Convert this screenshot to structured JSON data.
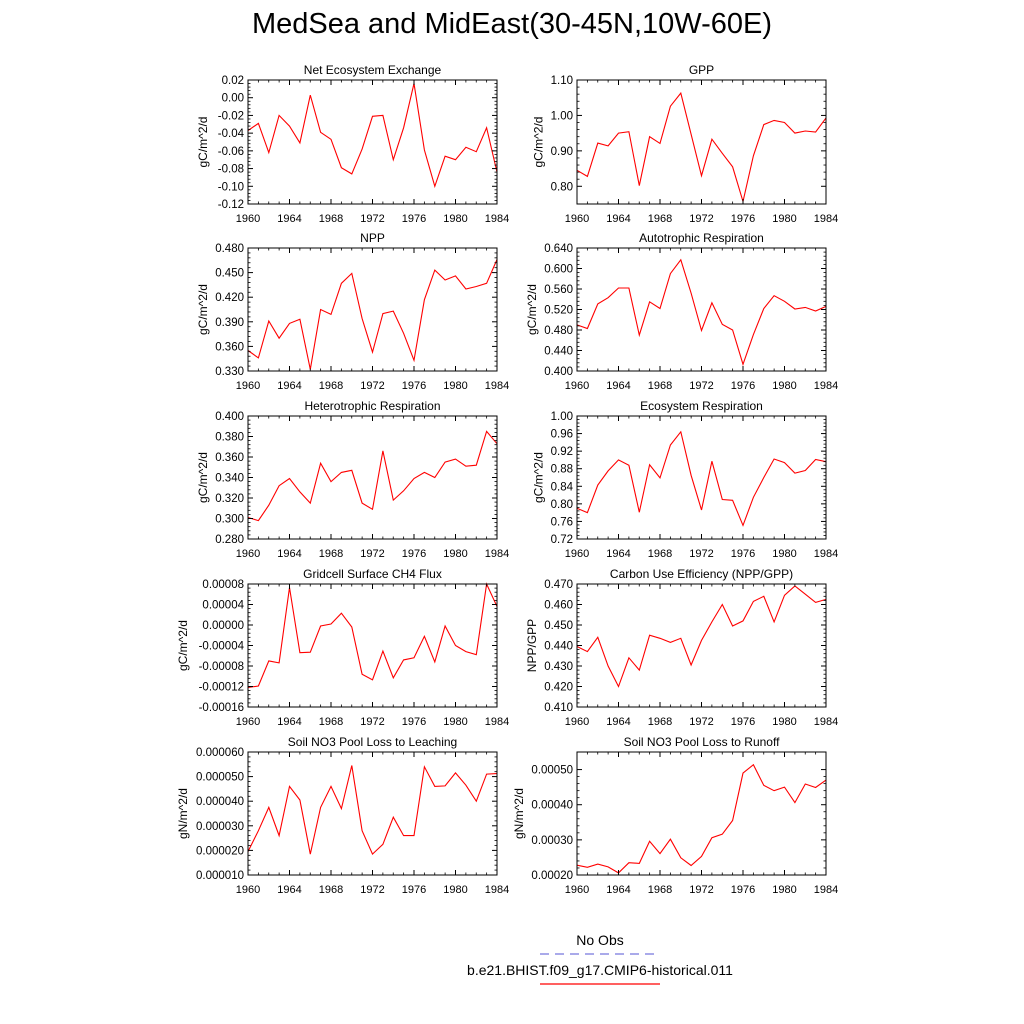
{
  "title": "MedSea and MidEast(30-45N,10W-60E)",
  "colors": {
    "model_line": "#ff0000",
    "obs_line": "#7777dd",
    "axis": "#000000"
  },
  "legend": {
    "obs_label": "No Obs",
    "model_label": "b.e21.BHIST.f09_g17.CMIP6-historical.011"
  },
  "chart_data": [
    {
      "type": "line",
      "title": "Net Ecosystem Exchange",
      "ylabel": "gC/m^2/d",
      "xlim": [
        1960,
        1984
      ],
      "ylim": [
        -0.12,
        0.02
      ],
      "xticks": [
        1960,
        1964,
        1968,
        1972,
        1976,
        1980,
        1984
      ],
      "yticks": [
        -0.12,
        -0.1,
        -0.08,
        -0.06,
        -0.04,
        -0.02,
        0.0,
        0.02
      ],
      "ytick_labels": [
        "-0.12",
        "-0.10",
        "-0.08",
        "-0.06",
        "-0.04",
        "-0.02",
        "0.00",
        "0.02"
      ],
      "x": [
        1960,
        1961,
        1962,
        1963,
        1964,
        1965,
        1966,
        1967,
        1968,
        1969,
        1970,
        1971,
        1972,
        1973,
        1974,
        1975,
        1976,
        1977,
        1978,
        1979,
        1980,
        1981,
        1982,
        1983,
        1984
      ],
      "y": [
        -0.037,
        -0.029,
        -0.062,
        -0.02,
        -0.032,
        -0.051,
        0.003,
        -0.039,
        -0.047,
        -0.079,
        -0.086,
        -0.058,
        -0.021,
        -0.02,
        -0.07,
        -0.034,
        0.016,
        -0.059,
        -0.1,
        -0.066,
        -0.07,
        -0.056,
        -0.061,
        -0.034,
        -0.084
      ]
    },
    {
      "type": "line",
      "title": "GPP",
      "ylabel": "gC/m^2/d",
      "xlim": [
        1960,
        1984
      ],
      "ylim": [
        0.75,
        1.1
      ],
      "xticks": [
        1960,
        1964,
        1968,
        1972,
        1976,
        1980,
        1984
      ],
      "yticks": [
        0.8,
        0.9,
        1.0,
        1.1
      ],
      "ytick_labels": [
        "0.80",
        "0.90",
        "1.00",
        "1.10"
      ],
      "x": [
        1960,
        1961,
        1962,
        1963,
        1964,
        1965,
        1966,
        1967,
        1968,
        1969,
        1970,
        1971,
        1972,
        1973,
        1974,
        1975,
        1976,
        1977,
        1978,
        1979,
        1980,
        1981,
        1982,
        1983,
        1984
      ],
      "y": [
        0.845,
        0.828,
        0.922,
        0.914,
        0.95,
        0.954,
        0.802,
        0.94,
        0.921,
        1.026,
        1.063,
        0.947,
        0.83,
        0.933,
        0.893,
        0.855,
        0.757,
        0.886,
        0.974,
        0.986,
        0.98,
        0.95,
        0.956,
        0.953,
        0.993
      ]
    },
    {
      "type": "line",
      "title": "NPP",
      "ylabel": "gC/m^2/d",
      "xlim": [
        1960,
        1984
      ],
      "ylim": [
        0.33,
        0.48
      ],
      "xticks": [
        1960,
        1964,
        1968,
        1972,
        1976,
        1980,
        1984
      ],
      "yticks": [
        0.33,
        0.36,
        0.39,
        0.42,
        0.45,
        0.48
      ],
      "ytick_labels": [
        "0.330",
        "0.360",
        "0.390",
        "0.420",
        "0.450",
        "0.480"
      ],
      "x": [
        1960,
        1961,
        1962,
        1963,
        1964,
        1965,
        1966,
        1967,
        1968,
        1969,
        1970,
        1971,
        1972,
        1973,
        1974,
        1975,
        1976,
        1977,
        1978,
        1979,
        1980,
        1981,
        1982,
        1983,
        1984
      ],
      "y": [
        0.355,
        0.346,
        0.391,
        0.37,
        0.388,
        0.393,
        0.332,
        0.405,
        0.399,
        0.437,
        0.449,
        0.394,
        0.353,
        0.4,
        0.403,
        0.376,
        0.343,
        0.417,
        0.453,
        0.441,
        0.446,
        0.43,
        0.433,
        0.437,
        0.466
      ]
    },
    {
      "type": "line",
      "title": "Autotrophic Respiration",
      "ylabel": "gC/m^2/d",
      "xlim": [
        1960,
        1984
      ],
      "ylim": [
        0.4,
        0.64
      ],
      "xticks": [
        1960,
        1964,
        1968,
        1972,
        1976,
        1980,
        1984
      ],
      "yticks": [
        0.4,
        0.44,
        0.48,
        0.52,
        0.56,
        0.6,
        0.64
      ],
      "ytick_labels": [
        "0.400",
        "0.440",
        "0.480",
        "0.520",
        "0.560",
        "0.600",
        "0.640"
      ],
      "x": [
        1960,
        1961,
        1962,
        1963,
        1964,
        1965,
        1966,
        1967,
        1968,
        1969,
        1970,
        1971,
        1972,
        1973,
        1974,
        1975,
        1976,
        1977,
        1978,
        1979,
        1980,
        1981,
        1982,
        1983,
        1984
      ],
      "y": [
        0.49,
        0.483,
        0.531,
        0.543,
        0.562,
        0.562,
        0.47,
        0.535,
        0.522,
        0.59,
        0.617,
        0.552,
        0.479,
        0.533,
        0.491,
        0.48,
        0.413,
        0.471,
        0.522,
        0.547,
        0.536,
        0.521,
        0.524,
        0.517,
        0.526
      ]
    },
    {
      "type": "line",
      "title": "Heterotrophic Respiration",
      "ylabel": "gC/m^2/d",
      "xlim": [
        1960,
        1984
      ],
      "ylim": [
        0.28,
        0.4
      ],
      "xticks": [
        1960,
        1964,
        1968,
        1972,
        1976,
        1980,
        1984
      ],
      "yticks": [
        0.28,
        0.3,
        0.32,
        0.34,
        0.36,
        0.38,
        0.4
      ],
      "ytick_labels": [
        "0.280",
        "0.300",
        "0.320",
        "0.340",
        "0.360",
        "0.380",
        "0.400"
      ],
      "x": [
        1960,
        1961,
        1962,
        1963,
        1964,
        1965,
        1966,
        1967,
        1968,
        1969,
        1970,
        1971,
        1972,
        1973,
        1974,
        1975,
        1976,
        1977,
        1978,
        1979,
        1980,
        1981,
        1982,
        1983,
        1984
      ],
      "y": [
        0.301,
        0.298,
        0.313,
        0.332,
        0.339,
        0.326,
        0.315,
        0.354,
        0.336,
        0.345,
        0.347,
        0.315,
        0.309,
        0.366,
        0.318,
        0.327,
        0.339,
        0.345,
        0.34,
        0.355,
        0.358,
        0.351,
        0.352,
        0.385,
        0.373
      ]
    },
    {
      "type": "line",
      "title": "Ecosystem Respiration",
      "ylabel": "gC/m^2/d",
      "xlim": [
        1960,
        1984
      ],
      "ylim": [
        0.72,
        1.0
      ],
      "xticks": [
        1960,
        1964,
        1968,
        1972,
        1976,
        1980,
        1984
      ],
      "yticks": [
        0.72,
        0.76,
        0.8,
        0.84,
        0.88,
        0.92,
        0.96,
        1.0
      ],
      "ytick_labels": [
        "0.72",
        "0.76",
        "0.80",
        "0.84",
        "0.88",
        "0.92",
        "0.96",
        "1.00"
      ],
      "x": [
        1960,
        1961,
        1962,
        1963,
        1964,
        1965,
        1966,
        1967,
        1968,
        1969,
        1970,
        1971,
        1972,
        1973,
        1974,
        1975,
        1976,
        1977,
        1978,
        1979,
        1980,
        1981,
        1982,
        1983,
        1984
      ],
      "y": [
        0.79,
        0.78,
        0.843,
        0.875,
        0.9,
        0.888,
        0.781,
        0.889,
        0.859,
        0.934,
        0.964,
        0.865,
        0.786,
        0.897,
        0.81,
        0.808,
        0.751,
        0.815,
        0.86,
        0.902,
        0.894,
        0.87,
        0.876,
        0.901,
        0.896
      ]
    },
    {
      "type": "line",
      "title": "Gridcell Surface CH4 Flux",
      "ylabel": "gC/m^2/d",
      "xlim": [
        1960,
        1984
      ],
      "ylim": [
        -0.00016,
        8e-05
      ],
      "xticks": [
        1960,
        1964,
        1968,
        1972,
        1976,
        1980,
        1984
      ],
      "yticks": [
        -0.00016,
        -0.00012,
        -8e-05,
        -4e-05,
        0.0,
        4e-05,
        8e-05
      ],
      "ytick_labels": [
        "-0.00016",
        "-0.00012",
        "-0.00008",
        "-0.00004",
        "0.00000",
        "0.00004",
        "0.00008"
      ],
      "x": [
        1960,
        1961,
        1962,
        1963,
        1964,
        1965,
        1966,
        1967,
        1968,
        1969,
        1970,
        1971,
        1972,
        1973,
        1974,
        1975,
        1976,
        1977,
        1978,
        1979,
        1980,
        1981,
        1982,
        1983,
        1984
      ],
      "y": [
        -0.000122,
        -0.000119,
        -7e-05,
        -7.4e-05,
        7.3e-05,
        -5.4e-05,
        -5.3e-05,
        -2e-06,
        2e-06,
        2.3e-05,
        -4e-06,
        -9.6e-05,
        -0.000107,
        -5.1e-05,
        -0.000103,
        -6.8e-05,
        -6.4e-05,
        -2.2e-05,
        -7.2e-05,
        -2e-06,
        -4e-05,
        -5.2e-05,
        -5.8e-05,
        8e-05,
        3.6e-05
      ]
    },
    {
      "type": "line",
      "title": "Carbon Use Efficiency (NPP/GPP)",
      "ylabel": "NPP/GPP",
      "xlim": [
        1960,
        1984
      ],
      "ylim": [
        0.41,
        0.47
      ],
      "xticks": [
        1960,
        1964,
        1968,
        1972,
        1976,
        1980,
        1984
      ],
      "yticks": [
        0.41,
        0.42,
        0.43,
        0.44,
        0.45,
        0.46,
        0.47
      ],
      "ytick_labels": [
        "0.410",
        "0.420",
        "0.430",
        "0.440",
        "0.450",
        "0.460",
        "0.470"
      ],
      "x": [
        1960,
        1961,
        1962,
        1963,
        1964,
        1965,
        1966,
        1967,
        1968,
        1969,
        1970,
        1971,
        1972,
        1973,
        1974,
        1975,
        1976,
        1977,
        1978,
        1979,
        1980,
        1981,
        1982,
        1983,
        1984
      ],
      "y": [
        0.4395,
        0.437,
        0.444,
        0.43,
        0.42,
        0.434,
        0.428,
        0.445,
        0.4435,
        0.4415,
        0.4435,
        0.4305,
        0.4425,
        0.4515,
        0.46,
        0.4495,
        0.452,
        0.4615,
        0.464,
        0.4515,
        0.4645,
        0.469,
        0.465,
        0.461,
        0.4625
      ]
    },
    {
      "type": "line",
      "title": "Soil NO3 Pool Loss to Leaching",
      "ylabel": "gN/m^2/d",
      "xlim": [
        1960,
        1984
      ],
      "ylim": [
        1e-05,
        6e-05
      ],
      "xticks": [
        1960,
        1964,
        1968,
        1972,
        1976,
        1980,
        1984
      ],
      "yticks": [
        1e-05,
        2e-05,
        3e-05,
        4e-05,
        5e-05,
        6e-05
      ],
      "ytick_labels": [
        "0.000010",
        "0.000020",
        "0.000030",
        "0.000040",
        "0.000050",
        "0.000060"
      ],
      "x": [
        1960,
        1961,
        1962,
        1963,
        1964,
        1965,
        1966,
        1967,
        1968,
        1969,
        1970,
        1971,
        1972,
        1973,
        1974,
        1975,
        1976,
        1977,
        1978,
        1979,
        1980,
        1981,
        1982,
        1983,
        1984
      ],
      "y": [
        1.95e-05,
        2.8e-05,
        3.75e-05,
        2.6e-05,
        4.6e-05,
        4.05e-05,
        1.85e-05,
        3.75e-05,
        4.6e-05,
        3.7e-05,
        5.45e-05,
        2.8e-05,
        1.85e-05,
        2.25e-05,
        3.35e-05,
        2.6e-05,
        2.6e-05,
        5.4e-05,
        4.6e-05,
        4.62e-05,
        5.15e-05,
        4.65e-05,
        4e-05,
        5.1e-05,
        5.12e-05
      ]
    },
    {
      "type": "line",
      "title": "Soil NO3 Pool Loss to Runoff",
      "ylabel": "gN/m^2/d",
      "xlim": [
        1960,
        1984
      ],
      "ylim": [
        0.0002,
        0.00055
      ],
      "xticks": [
        1960,
        1964,
        1968,
        1972,
        1976,
        1980,
        1984
      ],
      "yticks": [
        0.0002,
        0.0003,
        0.0004,
        0.0005
      ],
      "ytick_labels": [
        "0.00020",
        "0.00030",
        "0.00040",
        "0.00050"
      ],
      "x": [
        1960,
        1961,
        1962,
        1963,
        1964,
        1965,
        1966,
        1967,
        1968,
        1969,
        1970,
        1971,
        1972,
        1973,
        1974,
        1975,
        1976,
        1977,
        1978,
        1979,
        1980,
        1981,
        1982,
        1983,
        1984
      ],
      "y": [
        0.000228,
        0.000222,
        0.000231,
        0.000223,
        0.000206,
        0.000235,
        0.000233,
        0.000296,
        0.000261,
        0.000302,
        0.000249,
        0.000227,
        0.000253,
        0.000306,
        0.000316,
        0.000355,
        0.00049,
        0.000514,
        0.000455,
        0.00044,
        0.00045,
        0.000406,
        0.000459,
        0.000449,
        0.00047
      ]
    }
  ]
}
